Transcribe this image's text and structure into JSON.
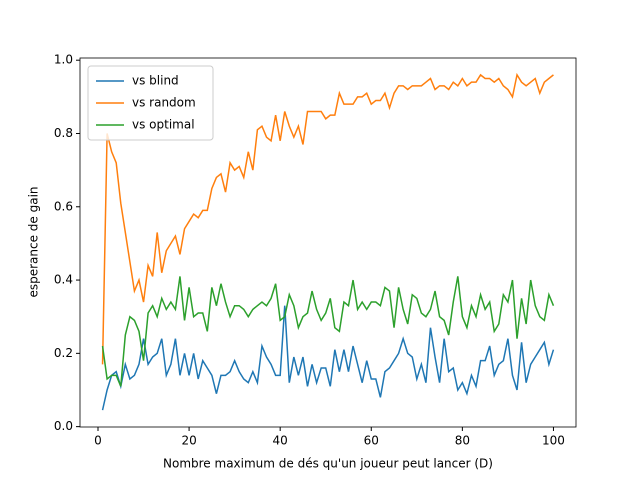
{
  "chart_data": {
    "type": "line",
    "xlabel": "Nombre maximum de dés qu'un joueur peut lancer (D)",
    "ylabel": "esperance de gain",
    "x": [
      1,
      2,
      3,
      4,
      5,
      6,
      7,
      8,
      9,
      10,
      11,
      12,
      13,
      14,
      15,
      16,
      17,
      18,
      19,
      20,
      21,
      22,
      23,
      24,
      25,
      26,
      27,
      28,
      29,
      30,
      31,
      32,
      33,
      34,
      35,
      36,
      37,
      38,
      39,
      40,
      41,
      42,
      43,
      44,
      45,
      46,
      47,
      48,
      49,
      50,
      51,
      52,
      53,
      54,
      55,
      56,
      57,
      58,
      59,
      60,
      61,
      62,
      63,
      64,
      65,
      66,
      67,
      68,
      69,
      70,
      71,
      72,
      73,
      74,
      75,
      76,
      77,
      78,
      79,
      80,
      81,
      82,
      83,
      84,
      85,
      86,
      87,
      88,
      89,
      90,
      91,
      92,
      93,
      94,
      95,
      96,
      97,
      98,
      99,
      100
    ],
    "series": [
      {
        "name": "vs blind",
        "color": "#1f77b4",
        "values": [
          0.045,
          0.1,
          0.14,
          0.15,
          0.11,
          0.17,
          0.13,
          0.14,
          0.17,
          0.24,
          0.17,
          0.19,
          0.2,
          0.24,
          0.14,
          0.17,
          0.24,
          0.14,
          0.2,
          0.14,
          0.2,
          0.13,
          0.18,
          0.16,
          0.14,
          0.09,
          0.14,
          0.14,
          0.15,
          0.18,
          0.15,
          0.13,
          0.12,
          0.15,
          0.12,
          0.22,
          0.19,
          0.17,
          0.14,
          0.14,
          0.33,
          0.12,
          0.19,
          0.14,
          0.19,
          0.11,
          0.17,
          0.12,
          0.16,
          0.16,
          0.11,
          0.21,
          0.15,
          0.21,
          0.15,
          0.22,
          0.17,
          0.12,
          0.18,
          0.13,
          0.13,
          0.08,
          0.15,
          0.16,
          0.18,
          0.2,
          0.24,
          0.2,
          0.19,
          0.13,
          0.17,
          0.12,
          0.27,
          0.19,
          0.12,
          0.24,
          0.15,
          0.16,
          0.1,
          0.12,
          0.09,
          0.14,
          0.11,
          0.18,
          0.18,
          0.22,
          0.14,
          0.17,
          0.18,
          0.24,
          0.14,
          0.1,
          0.23,
          0.12,
          0.17,
          0.19,
          0.21,
          0.23,
          0.17,
          0.21
        ]
      },
      {
        "name": "vs random",
        "color": "#ff7f0e",
        "values": [
          0.17,
          0.8,
          0.75,
          0.72,
          0.61,
          0.53,
          0.45,
          0.37,
          0.4,
          0.34,
          0.44,
          0.41,
          0.53,
          0.42,
          0.48,
          0.5,
          0.52,
          0.47,
          0.54,
          0.56,
          0.58,
          0.57,
          0.59,
          0.59,
          0.65,
          0.68,
          0.69,
          0.64,
          0.72,
          0.7,
          0.71,
          0.68,
          0.75,
          0.7,
          0.81,
          0.82,
          0.79,
          0.78,
          0.85,
          0.78,
          0.86,
          0.82,
          0.79,
          0.82,
          0.77,
          0.86,
          0.86,
          0.86,
          0.86,
          0.84,
          0.85,
          0.85,
          0.91,
          0.88,
          0.88,
          0.88,
          0.9,
          0.9,
          0.91,
          0.88,
          0.89,
          0.89,
          0.91,
          0.87,
          0.91,
          0.93,
          0.93,
          0.92,
          0.93,
          0.93,
          0.93,
          0.94,
          0.95,
          0.92,
          0.93,
          0.93,
          0.92,
          0.94,
          0.93,
          0.95,
          0.93,
          0.94,
          0.94,
          0.96,
          0.95,
          0.95,
          0.94,
          0.95,
          0.93,
          0.92,
          0.9,
          0.96,
          0.94,
          0.93,
          0.94,
          0.95,
          0.91,
          0.94,
          0.95,
          0.96
        ]
      },
      {
        "name": "vs optimal",
        "color": "#2ca02c",
        "values": [
          0.22,
          0.13,
          0.14,
          0.14,
          0.11,
          0.25,
          0.3,
          0.29,
          0.26,
          0.18,
          0.31,
          0.33,
          0.3,
          0.35,
          0.32,
          0.34,
          0.32,
          0.41,
          0.29,
          0.38,
          0.3,
          0.31,
          0.31,
          0.26,
          0.38,
          0.33,
          0.39,
          0.34,
          0.3,
          0.33,
          0.33,
          0.32,
          0.3,
          0.32,
          0.33,
          0.34,
          0.33,
          0.35,
          0.39,
          0.29,
          0.3,
          0.36,
          0.33,
          0.27,
          0.3,
          0.31,
          0.37,
          0.32,
          0.29,
          0.31,
          0.35,
          0.27,
          0.26,
          0.34,
          0.33,
          0.4,
          0.32,
          0.34,
          0.32,
          0.34,
          0.34,
          0.33,
          0.38,
          0.37,
          0.27,
          0.38,
          0.32,
          0.28,
          0.36,
          0.35,
          0.31,
          0.3,
          0.32,
          0.37,
          0.3,
          0.29,
          0.25,
          0.34,
          0.41,
          0.3,
          0.27,
          0.33,
          0.3,
          0.36,
          0.32,
          0.34,
          0.26,
          0.28,
          0.36,
          0.34,
          0.4,
          0.24,
          0.35,
          0.28,
          0.4,
          0.33,
          0.3,
          0.29,
          0.36,
          0.33
        ]
      }
    ],
    "xlim": [
      -3.95,
      104.95
    ],
    "xticks": [
      0,
      20,
      40,
      60,
      80,
      100
    ],
    "ylim": [
      -0.001,
      1.006
    ],
    "yticks": [
      {
        "value": 0,
        "label": "0.0"
      },
      0.2,
      0.4,
      0.6,
      0.8,
      {
        "value": 1,
        "label": "1.0"
      }
    ],
    "legend": "upper left"
  }
}
